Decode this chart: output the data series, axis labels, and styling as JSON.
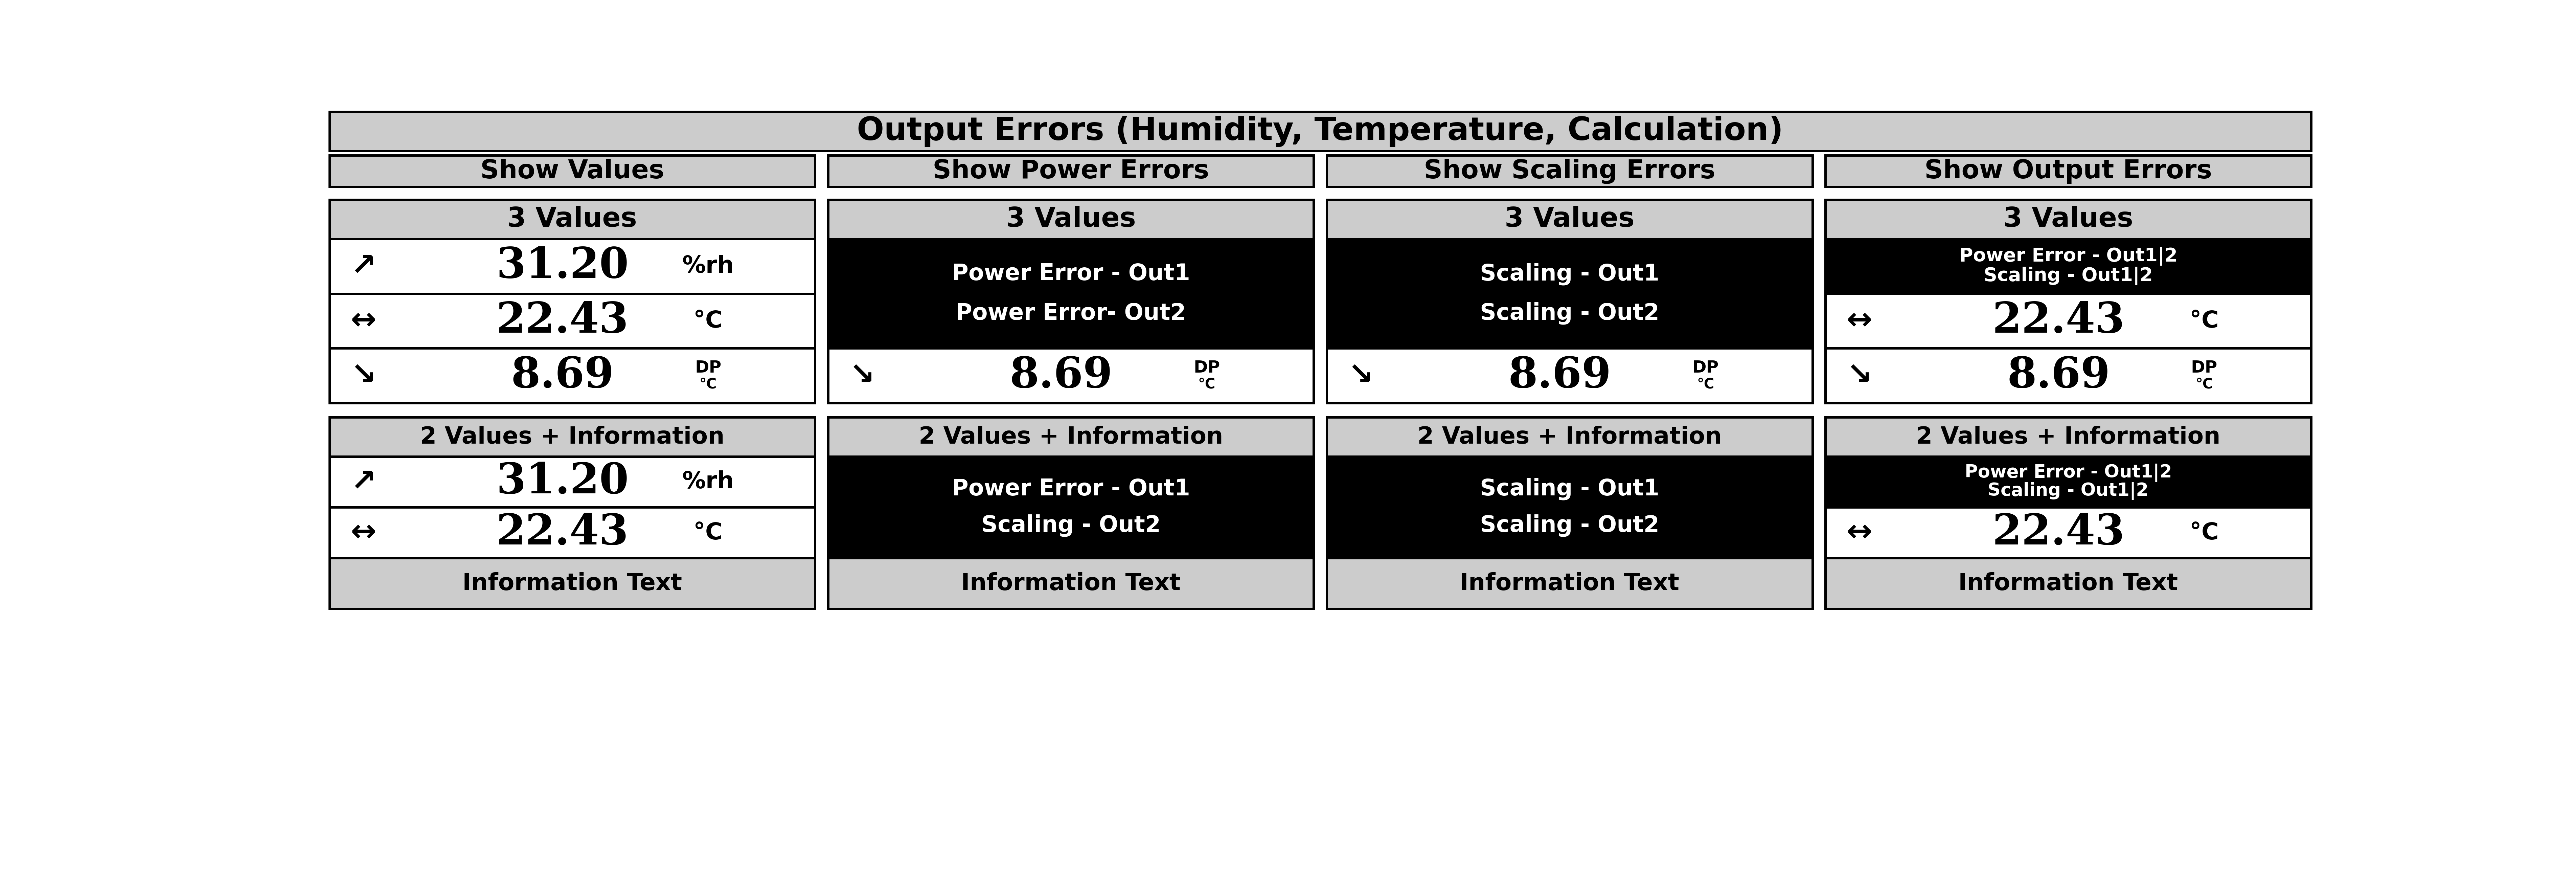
{
  "title": "Output Errors (Humidity, Temperature, Calculation)",
  "col_headers": [
    "Show Values",
    "Show Power Errors",
    "Show Scaling Errors",
    "Show Output Errors"
  ],
  "row1_label": "3 Values",
  "row2_label": "2 Values + Information",
  "bg_color": "#ffffff",
  "header_bg": "#cccccc",
  "cell_bg_light": "#cccccc",
  "cell_bg_dark": "#000000",
  "cell_bg_white": "#ffffff",
  "col1_rows3v": [
    {
      "arrow": "↗",
      "value": "31.20",
      "unit": "%rh"
    },
    {
      "arrow": "↔",
      "value": "22.43",
      "unit": "°C"
    },
    {
      "arrow": "↘",
      "value": "8.69",
      "unit_sup": "DP",
      "unit_sub": "°C"
    }
  ],
  "col2_rows3v_top_lines": [
    "Power Error - Out1",
    "Power Error- Out2"
  ],
  "col2_rows3v_bottom": {
    "arrow": "↘",
    "value": "8.69",
    "unit_sup": "DP",
    "unit_sub": "°C"
  },
  "col3_rows3v_top_lines": [
    "Scaling - Out1",
    "Scaling - Out2"
  ],
  "col3_rows3v_bottom": {
    "arrow": "↘",
    "value": "8.69",
    "unit_sup": "DP",
    "unit_sub": "°C"
  },
  "col4_rows3v_top_lines": [
    "Power Error - Out1|2",
    "Scaling - Out1|2"
  ],
  "col4_rows3v_mid": {
    "arrow": "↔",
    "value": "22.43",
    "unit": "°C"
  },
  "col4_rows3v_bot": {
    "arrow": "↘",
    "value": "8.69",
    "unit_sup": "DP",
    "unit_sub": "°C"
  },
  "col1_rows2v": [
    {
      "arrow": "↗",
      "value": "31.20",
      "unit": "%rh"
    },
    {
      "arrow": "↔",
      "value": "22.43",
      "unit": "°C"
    }
  ],
  "col1_rows2v_info": "Information Text",
  "col2_rows2v_top_lines": [
    "Power Error - Out1",
    "Scaling - Out2"
  ],
  "col2_rows2v_info": "Information Text",
  "col3_rows2v_top_lines": [
    "Scaling - Out1",
    "Scaling - Out2"
  ],
  "col3_rows2v_info": "Information Text",
  "col4_rows2v_top_lines": [
    "Power Error - Out1|2",
    "Scaling - Out1|2"
  ],
  "col4_rows2v_mid": {
    "arrow": "↔",
    "value": "22.43",
    "unit": "°C"
  },
  "col4_rows2v_info": "Information Text"
}
